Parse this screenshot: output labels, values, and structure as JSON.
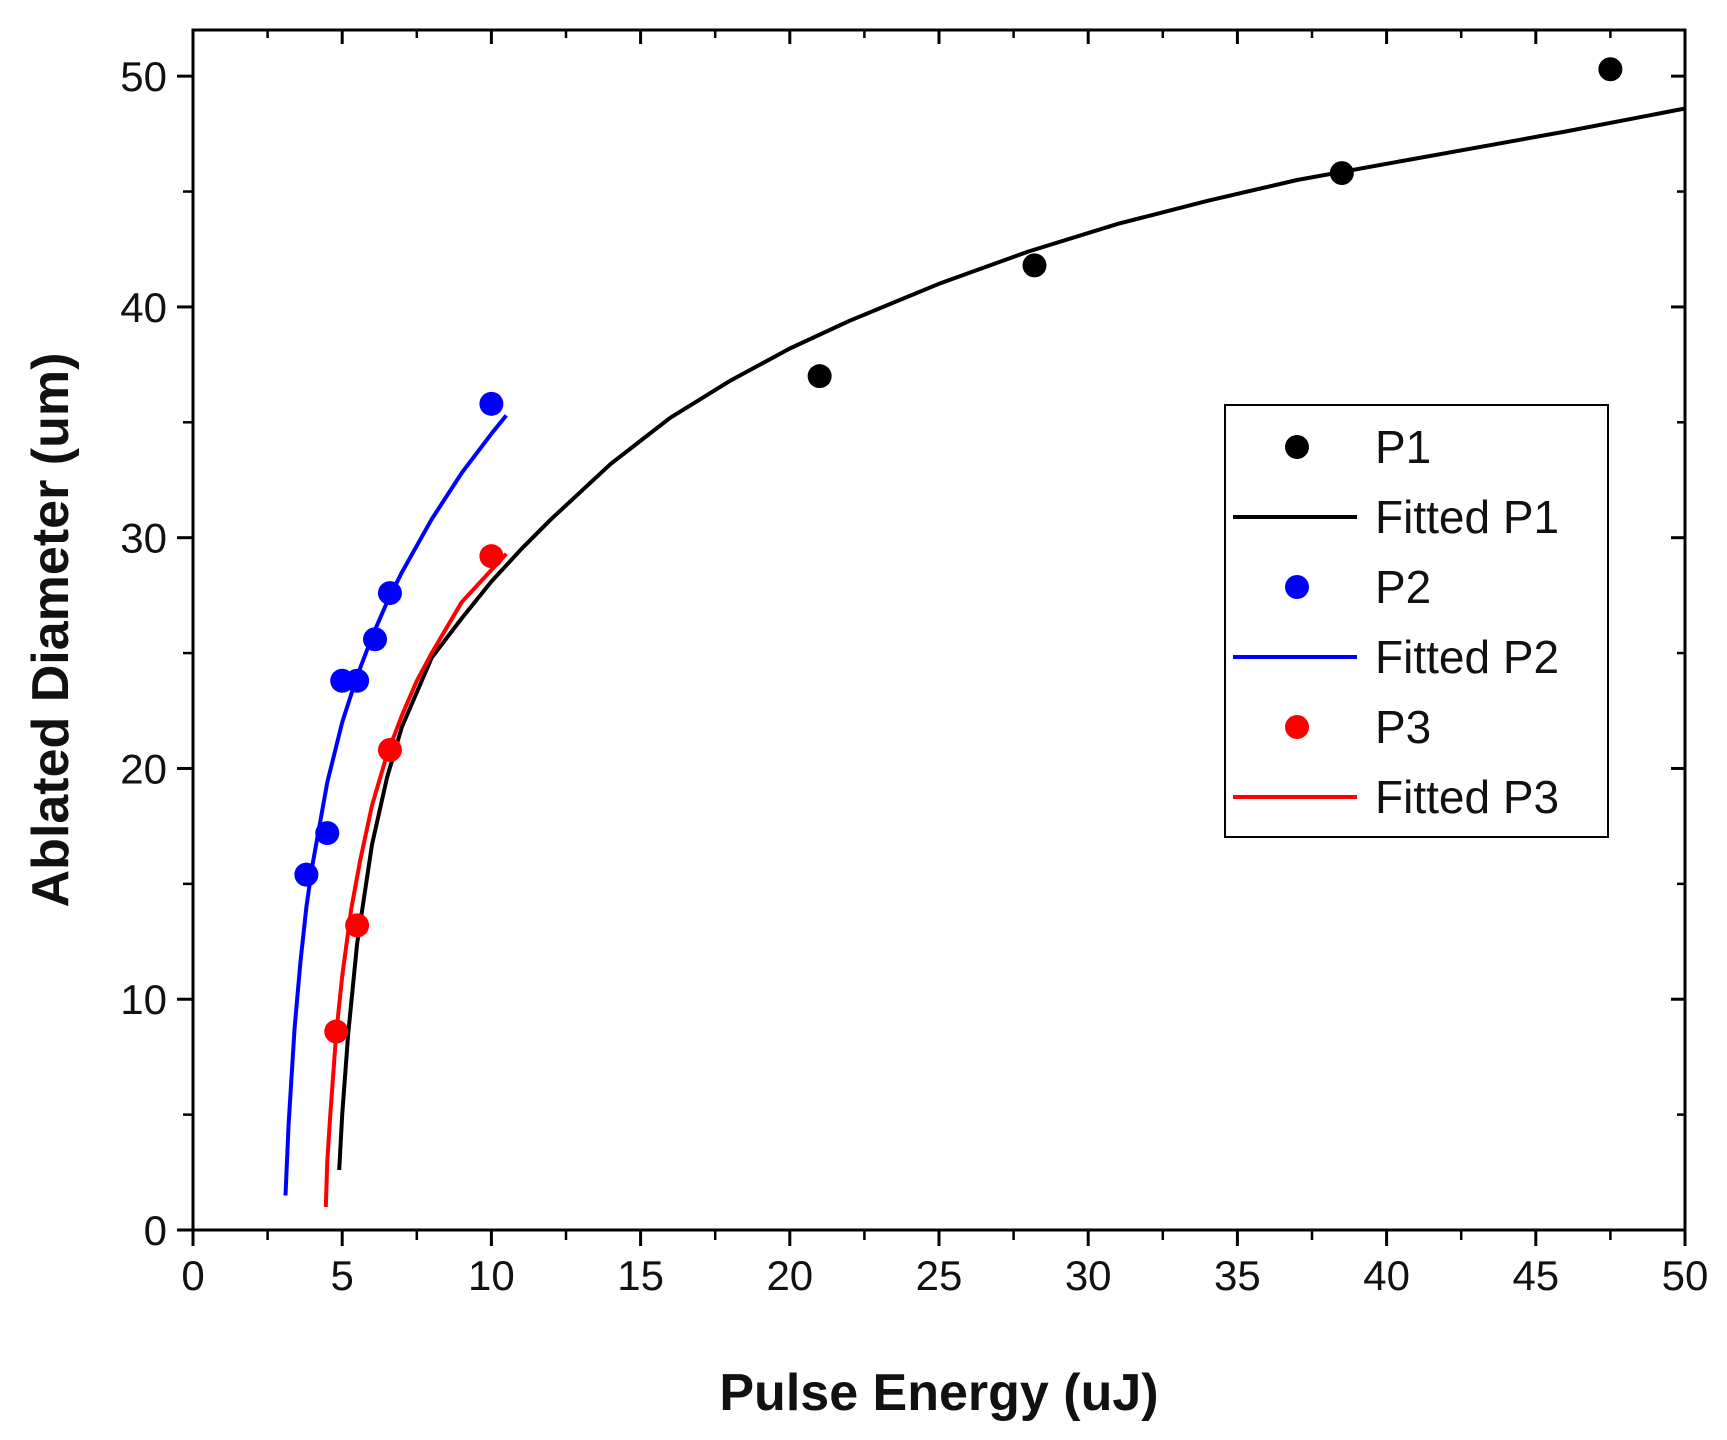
{
  "chart_data": {
    "type": "scatter",
    "title": "",
    "xlabel": "Pulse Energy (uJ)",
    "ylabel": "Ablated Diameter (um)",
    "xlim": [
      0,
      50
    ],
    "ylim": [
      0,
      52
    ],
    "xticks": [
      0,
      5,
      10,
      15,
      20,
      25,
      30,
      35,
      40,
      45,
      50
    ],
    "yticks": [
      0,
      10,
      20,
      30,
      40,
      50
    ],
    "grid": false,
    "legend_position": "right",
    "series": [
      {
        "name": "P1",
        "kind": "points",
        "color": "#000000",
        "x": [
          21.0,
          28.2,
          38.5,
          47.5
        ],
        "y": [
          37.0,
          41.8,
          45.8,
          50.3
        ]
      },
      {
        "name": "Fitted P1",
        "kind": "line",
        "color": "#000000",
        "x": [
          4.9,
          5.0,
          5.2,
          5.5,
          6.0,
          6.5,
          7.0,
          8.0,
          9.0,
          10.0,
          11.0,
          12.0,
          14.0,
          16.0,
          18.0,
          20.0,
          22.0,
          25.0,
          28.0,
          31.0,
          34.0,
          37.0,
          40.0,
          43.0,
          46.0,
          50.0
        ],
        "y": [
          2.6,
          5.0,
          8.5,
          12.4,
          16.7,
          19.6,
          21.8,
          24.8,
          26.5,
          28.1,
          29.5,
          30.8,
          33.2,
          35.2,
          36.8,
          38.2,
          39.4,
          41.0,
          42.4,
          43.6,
          44.6,
          45.5,
          46.2,
          46.9,
          47.6,
          48.6
        ]
      },
      {
        "name": "P2",
        "kind": "points",
        "color": "#0000ff",
        "x": [
          3.8,
          4.5,
          5.0,
          5.5,
          6.1,
          6.6,
          10.0
        ],
        "y": [
          15.4,
          17.2,
          23.8,
          23.8,
          25.6,
          27.6,
          35.8
        ]
      },
      {
        "name": "Fitted P2",
        "kind": "line",
        "color": "#0000ff",
        "x": [
          3.1,
          3.2,
          3.4,
          3.6,
          3.8,
          4.0,
          4.5,
          5.0,
          5.5,
          6.0,
          6.5,
          7.0,
          8.0,
          9.0,
          10.0,
          10.5
        ],
        "y": [
          1.5,
          4.5,
          8.7,
          11.6,
          14.0,
          15.8,
          19.4,
          22.0,
          24.0,
          25.7,
          27.2,
          28.5,
          30.8,
          32.8,
          34.5,
          35.3
        ]
      },
      {
        "name": "P3",
        "kind": "points",
        "color": "#ff0000",
        "x": [
          4.8,
          5.5,
          6.6,
          10.0
        ],
        "y": [
          8.6,
          13.2,
          20.8,
          29.2
        ]
      },
      {
        "name": "Fitted P3",
        "kind": "line",
        "color": "#ff0000",
        "x": [
          4.45,
          4.5,
          4.6,
          4.8,
          5.0,
          5.3,
          5.6,
          6.0,
          6.5,
          7.0,
          7.5,
          8.0,
          9.0,
          10.0,
          10.5
        ],
        "y": [
          1.0,
          3.0,
          5.0,
          8.5,
          11.0,
          13.9,
          16.0,
          18.4,
          20.6,
          22.3,
          23.8,
          25.0,
          27.2,
          28.6,
          29.3
        ]
      }
    ]
  }
}
